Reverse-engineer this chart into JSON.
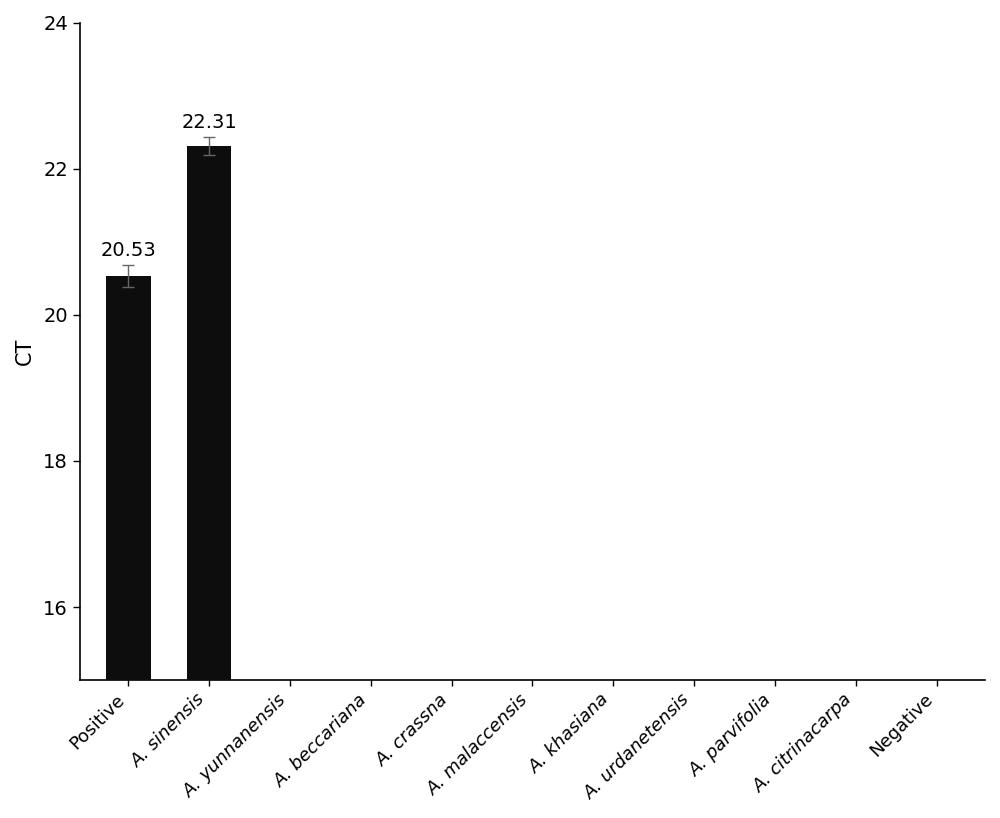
{
  "categories": [
    "Positive",
    "A. sinensis",
    "A. yunnanensis",
    "A. beccariana",
    "A. crassna",
    "A. malaccensis",
    "A. khasiana",
    "A. urdanetensis",
    "A. parvifolia",
    "A. citrinacarpa",
    "Negative"
  ],
  "values": [
    20.53,
    22.31,
    0,
    0,
    0,
    0,
    0,
    0,
    0,
    0,
    0
  ],
  "errors": [
    0.15,
    0.12,
    0,
    0,
    0,
    0,
    0,
    0,
    0,
    0,
    0
  ],
  "bar_color": "#0d0d0d",
  "error_color": "#666666",
  "ylabel": "CT",
  "ylim_min": 15,
  "ylim_max": 24,
  "yticks": [
    16,
    18,
    20,
    22,
    24
  ],
  "annotations": [
    {
      "text": "20.53",
      "idx": 0,
      "val": 20.53,
      "err": 0.15
    },
    {
      "text": "22.31",
      "idx": 1,
      "val": 22.31,
      "err": 0.12
    }
  ],
  "annotation_fontsize": 14,
  "ylabel_fontsize": 15,
  "tick_label_fontsize": 13,
  "ytick_fontsize": 14,
  "bar_width": 0.55,
  "background_color": "#ffffff",
  "figsize": [
    10.0,
    8.18
  ],
  "dpi": 100
}
